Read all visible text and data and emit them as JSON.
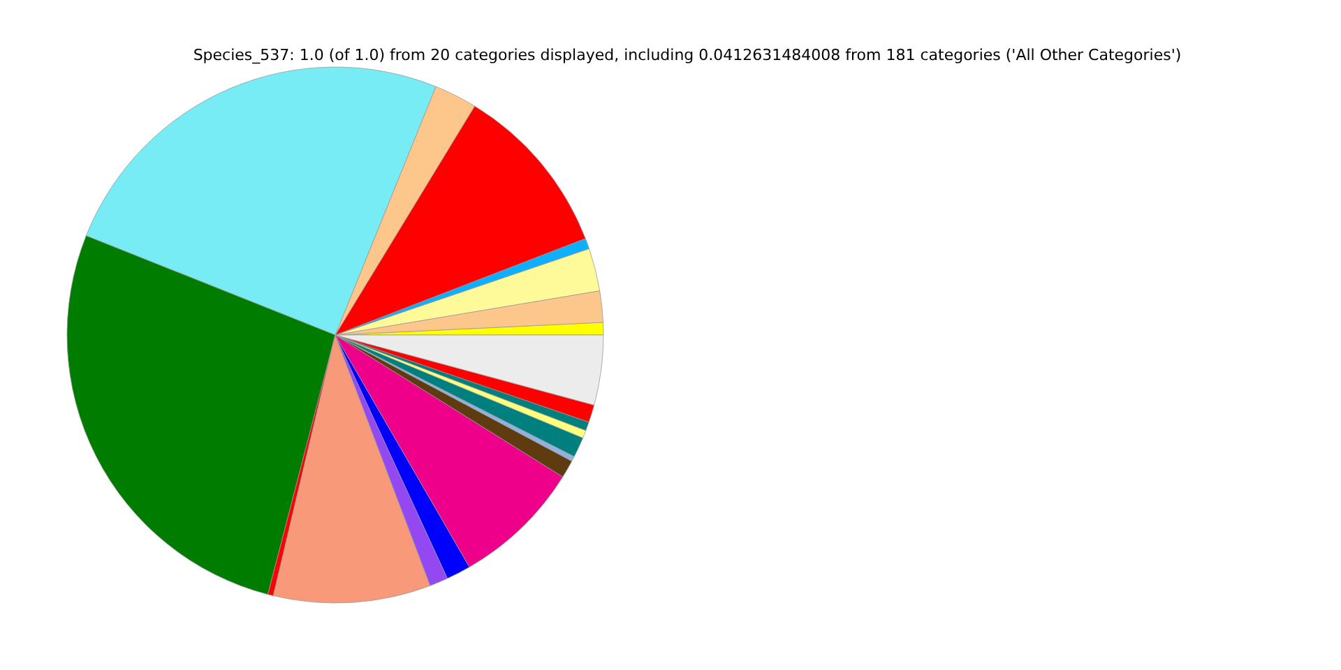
{
  "chart_data": {
    "type": "pie",
    "title": "Species_537: 1.0 (of 1.0) from 20 categories displayed, including 0.0412631484008 from 181 categories ('All Other Categories')",
    "categories": [
      null,
      null,
      null,
      null,
      null,
      null,
      null,
      null,
      null,
      null,
      null,
      null,
      null,
      null,
      null,
      null,
      null,
      null,
      null,
      null
    ],
    "values": [
      0.75,
      1.89,
      2.58,
      0.64,
      10.44,
      2.58,
      25.08,
      27.0,
      0.33,
      9.47,
      1.11,
      1.47,
      7.78,
      1.08,
      0.31,
      1.22,
      0.47,
      0.53,
      1.06,
      4.21
    ],
    "colors": [
      "#ffff00",
      "#fdc78b",
      "#fffa99",
      "#0db0ff",
      "#ff0000",
      "#fdc78b",
      "#78ecf4",
      "#007c00",
      "#ff0000",
      "#f89a7a",
      "#9348f2",
      "#0000ff",
      "#ee008b",
      "#5e3c10",
      "#8fb3e0",
      "#007f7f",
      "#ffff7f",
      "#007f7f",
      "#ff0000",
      "#ececec"
    ]
  }
}
